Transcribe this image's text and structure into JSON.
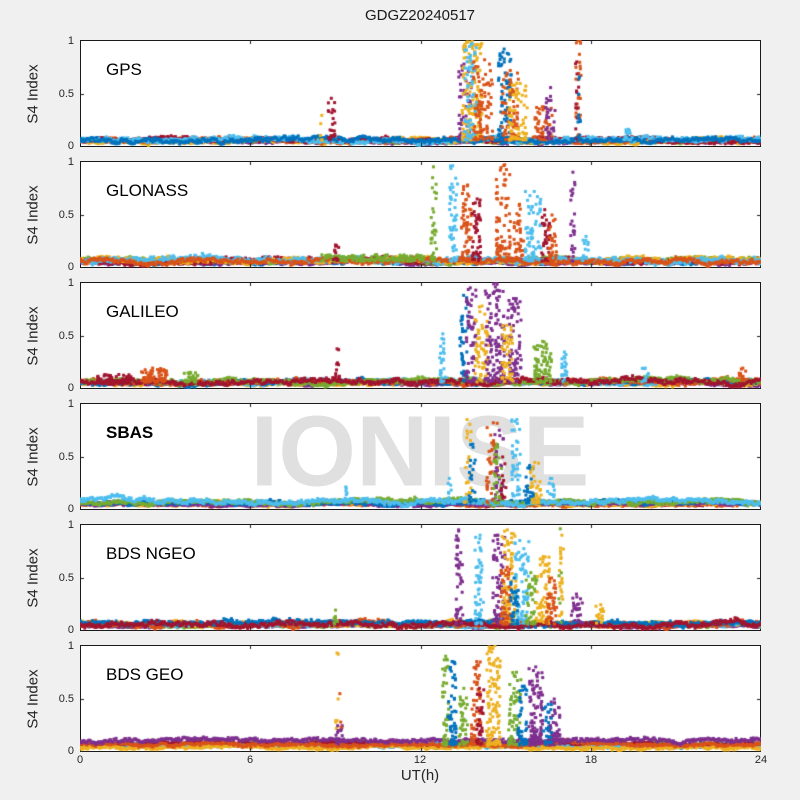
{
  "watermark": {
    "text": "IONISE"
  },
  "colors": {
    "figure_bg": "#f0f0f0",
    "panel_bg": "#ffffff",
    "axis_color": "#1a1a1a",
    "text_color": "#262626",
    "watermark_color": "#e0e0e0"
  },
  "chart_data": {
    "type": "scatter",
    "title": "GDGZ20240517",
    "xlabel": "UT(h)",
    "ylabel": "S4 Index",
    "xlim": [
      0,
      24
    ],
    "ylim": [
      0,
      1
    ],
    "xticks": [
      0,
      6,
      12,
      18,
      24
    ],
    "yticks": [
      0,
      0.5,
      1
    ],
    "xticklabels": [
      "0",
      "6",
      "12",
      "18",
      "24"
    ],
    "yticklabels": [
      "0",
      "0.5",
      "1"
    ],
    "grid": false,
    "legend": "none",
    "marker": "square",
    "marker_size_px": 3,
    "palette": {
      "blue": "#0072BD",
      "orange": "#D95319",
      "yellow": "#EDB120",
      "purple": "#7E2F8E",
      "green": "#77AC30",
      "cyan": "#4DBEEE",
      "red": "#A2142F"
    },
    "panels": [
      {
        "label": "GPS",
        "bold_label": false,
        "baseline": [
          {
            "color": "purple",
            "mean": 0.055,
            "amp": 0.02
          },
          {
            "color": "green",
            "mean": 0.06,
            "amp": 0.02
          },
          {
            "color": "yellow",
            "mean": 0.065,
            "amp": 0.03
          },
          {
            "color": "orange",
            "mean": 0.07,
            "amp": 0.03
          },
          {
            "color": "red",
            "mean": 0.07,
            "amp": 0.03
          },
          {
            "color": "cyan",
            "mean": 0.075,
            "amp": 0.035
          },
          {
            "color": "blue",
            "mean": 0.07,
            "amp": 0.035
          }
        ],
        "spikes": [
          {
            "t": 8.5,
            "w": 0.1,
            "peak": 0.3,
            "color": "yellow",
            "n": 4
          },
          {
            "t": 8.85,
            "w": 0.25,
            "peak": 0.46,
            "color": "red",
            "n": 22
          },
          {
            "t": 13.55,
            "w": 0.45,
            "peak": 0.78,
            "color": "purple",
            "n": 45
          },
          {
            "t": 13.8,
            "w": 0.7,
            "peak": 1.0,
            "color": "yellow",
            "n": 150
          },
          {
            "t": 13.75,
            "w": 0.45,
            "peak": 0.97,
            "color": "cyan",
            "n": 65
          },
          {
            "t": 14.2,
            "w": 0.7,
            "peak": 0.82,
            "color": "orange",
            "n": 90
          },
          {
            "t": 14.95,
            "w": 0.45,
            "peak": 0.92,
            "color": "blue",
            "n": 70
          },
          {
            "t": 15.15,
            "w": 0.6,
            "peak": 0.72,
            "color": "orange",
            "n": 70
          },
          {
            "t": 15.4,
            "w": 0.7,
            "peak": 0.6,
            "color": "yellow",
            "n": 70
          },
          {
            "t": 16.3,
            "w": 0.7,
            "peak": 0.38,
            "color": "orange",
            "n": 45
          },
          {
            "t": 16.55,
            "w": 0.35,
            "peak": 0.56,
            "color": "purple",
            "n": 28
          },
          {
            "t": 17.55,
            "w": 0.18,
            "peak": 1.0,
            "color": "orange",
            "n": 28
          },
          {
            "t": 17.5,
            "w": 0.12,
            "peak": 0.8,
            "color": "red",
            "n": 12
          },
          {
            "t": 17.58,
            "w": 0.1,
            "peak": 0.66,
            "color": "blue",
            "n": 12
          },
          {
            "t": 19.3,
            "w": 0.3,
            "peak": 0.17,
            "color": "cyan",
            "n": 14
          }
        ]
      },
      {
        "label": "GLONASS",
        "bold_label": false,
        "baseline": [
          {
            "color": "blue",
            "mean": 0.06,
            "amp": 0.025
          },
          {
            "color": "purple",
            "mean": 0.06,
            "amp": 0.025
          },
          {
            "color": "green",
            "mean": 0.08,
            "amp": 0.03
          },
          {
            "color": "red",
            "mean": 0.07,
            "amp": 0.035
          },
          {
            "color": "yellow",
            "mean": 0.075,
            "amp": 0.035
          },
          {
            "color": "cyan",
            "mean": 0.08,
            "amp": 0.04
          },
          {
            "color": "orange",
            "mean": 0.07,
            "amp": 0.035
          }
        ],
        "spikes": [
          {
            "t": 10.3,
            "w": 3.6,
            "peak": 0.13,
            "color": "green",
            "n": 160
          },
          {
            "t": 9.0,
            "w": 0.2,
            "peak": 0.22,
            "color": "red",
            "n": 12
          },
          {
            "t": 12.45,
            "w": 0.2,
            "peak": 0.95,
            "color": "green",
            "n": 32
          },
          {
            "t": 13.15,
            "w": 0.3,
            "peak": 0.96,
            "color": "cyan",
            "n": 48
          },
          {
            "t": 13.6,
            "w": 0.35,
            "peak": 0.78,
            "color": "orange",
            "n": 55
          },
          {
            "t": 13.95,
            "w": 0.3,
            "peak": 0.65,
            "color": "red",
            "n": 45
          },
          {
            "t": 14.9,
            "w": 0.5,
            "peak": 0.97,
            "color": "orange",
            "n": 75
          },
          {
            "t": 15.45,
            "w": 0.35,
            "peak": 0.6,
            "color": "orange",
            "n": 35
          },
          {
            "t": 15.95,
            "w": 0.55,
            "peak": 0.72,
            "color": "cyan",
            "n": 65
          },
          {
            "t": 16.4,
            "w": 0.3,
            "peak": 0.55,
            "color": "red",
            "n": 35
          },
          {
            "t": 16.65,
            "w": 0.3,
            "peak": 0.5,
            "color": "orange",
            "n": 30
          },
          {
            "t": 17.35,
            "w": 0.15,
            "peak": 0.9,
            "color": "purple",
            "n": 25
          },
          {
            "t": 17.8,
            "w": 0.25,
            "peak": 0.3,
            "color": "cyan",
            "n": 15
          }
        ]
      },
      {
        "label": "GALILEO",
        "bold_label": false,
        "baseline": [
          {
            "color": "purple",
            "mean": 0.055,
            "amp": 0.02
          },
          {
            "color": "yellow",
            "mean": 0.06,
            "amp": 0.03
          },
          {
            "color": "cyan",
            "mean": 0.07,
            "amp": 0.03
          },
          {
            "color": "blue",
            "mean": 0.07,
            "amp": 0.03
          },
          {
            "color": "orange",
            "mean": 0.07,
            "amp": 0.035
          },
          {
            "color": "green",
            "mean": 0.08,
            "amp": 0.035
          },
          {
            "color": "red",
            "mean": 0.075,
            "amp": 0.04
          }
        ],
        "spikes": [
          {
            "t": 2.6,
            "w": 0.9,
            "peak": 0.2,
            "color": "orange",
            "n": 70
          },
          {
            "t": 1.2,
            "w": 1.2,
            "peak": 0.14,
            "color": "red",
            "n": 60
          },
          {
            "t": 3.9,
            "w": 0.5,
            "peak": 0.16,
            "color": "green",
            "n": 30
          },
          {
            "t": 9.05,
            "w": 0.15,
            "peak": 0.38,
            "color": "red",
            "n": 12
          },
          {
            "t": 12.75,
            "w": 0.2,
            "peak": 0.52,
            "color": "cyan",
            "n": 26
          },
          {
            "t": 13.5,
            "w": 0.3,
            "peak": 0.88,
            "color": "blue",
            "n": 42
          },
          {
            "t": 13.75,
            "w": 0.4,
            "peak": 0.95,
            "color": "purple",
            "n": 60
          },
          {
            "t": 14.15,
            "w": 0.5,
            "peak": 0.78,
            "color": "yellow",
            "n": 65
          },
          {
            "t": 14.6,
            "w": 0.7,
            "peak": 1.0,
            "color": "purple",
            "n": 120
          },
          {
            "t": 15.3,
            "w": 0.5,
            "peak": 0.85,
            "color": "purple",
            "n": 70
          },
          {
            "t": 15.05,
            "w": 0.4,
            "peak": 0.6,
            "color": "yellow",
            "n": 45
          },
          {
            "t": 16.3,
            "w": 0.65,
            "peak": 0.45,
            "color": "green",
            "n": 75
          },
          {
            "t": 17.05,
            "w": 0.2,
            "peak": 0.35,
            "color": "cyan",
            "n": 20
          },
          {
            "t": 19.9,
            "w": 0.25,
            "peak": 0.2,
            "color": "cyan",
            "n": 10
          },
          {
            "t": 23.3,
            "w": 0.3,
            "peak": 0.2,
            "color": "orange",
            "n": 12
          }
        ]
      },
      {
        "label": "SBAS",
        "bold_label": true,
        "baseline": [
          {
            "color": "red",
            "mean": 0.06,
            "amp": 0.02
          },
          {
            "color": "orange",
            "mean": 0.06,
            "amp": 0.02
          },
          {
            "color": "yellow",
            "mean": 0.065,
            "amp": 0.025
          },
          {
            "color": "purple",
            "mean": 0.06,
            "amp": 0.02
          },
          {
            "color": "blue",
            "mean": 0.075,
            "amp": 0.03
          },
          {
            "color": "green",
            "mean": 0.08,
            "amp": 0.03
          },
          {
            "color": "cyan",
            "mean": 0.085,
            "amp": 0.035
          }
        ],
        "spikes": [
          {
            "t": 9.35,
            "w": 0.15,
            "peak": 0.22,
            "color": "cyan",
            "n": 8
          },
          {
            "t": 13.0,
            "w": 0.15,
            "peak": 0.3,
            "color": "cyan",
            "n": 8
          },
          {
            "t": 13.65,
            "w": 0.25,
            "peak": 0.85,
            "color": "yellow",
            "n": 25
          },
          {
            "t": 13.8,
            "w": 0.3,
            "peak": 0.62,
            "color": "blue",
            "n": 20
          },
          {
            "t": 14.5,
            "w": 0.4,
            "peak": 0.82,
            "color": "orange",
            "n": 40
          },
          {
            "t": 14.75,
            "w": 0.3,
            "peak": 0.75,
            "color": "purple",
            "n": 30
          },
          {
            "t": 14.7,
            "w": 0.3,
            "peak": 0.62,
            "color": "green",
            "n": 28
          },
          {
            "t": 14.9,
            "w": 0.2,
            "peak": 0.5,
            "color": "red",
            "n": 12
          },
          {
            "t": 15.35,
            "w": 0.3,
            "peak": 0.85,
            "color": "cyan",
            "n": 45
          },
          {
            "t": 15.8,
            "w": 0.35,
            "peak": 0.42,
            "color": "blue",
            "n": 25
          },
          {
            "t": 16.05,
            "w": 0.4,
            "peak": 0.45,
            "color": "yellow",
            "n": 32
          },
          {
            "t": 16.6,
            "w": 0.3,
            "peak": 0.3,
            "color": "cyan",
            "n": 15
          }
        ]
      },
      {
        "label": "BDS NGEO",
        "bold_label": false,
        "baseline": [
          {
            "color": "purple",
            "mean": 0.055,
            "amp": 0.02
          },
          {
            "color": "green",
            "mean": 0.06,
            "amp": 0.025
          },
          {
            "color": "yellow",
            "mean": 0.07,
            "amp": 0.03
          },
          {
            "color": "cyan",
            "mean": 0.07,
            "amp": 0.03
          },
          {
            "color": "orange",
            "mean": 0.07,
            "amp": 0.035
          },
          {
            "color": "blue",
            "mean": 0.075,
            "amp": 0.035
          },
          {
            "color": "red",
            "mean": 0.07,
            "amp": 0.04
          }
        ],
        "spikes": [
          {
            "t": 9.0,
            "w": 0.15,
            "peak": 0.2,
            "color": "green",
            "n": 8
          },
          {
            "t": 13.35,
            "w": 0.25,
            "peak": 0.95,
            "color": "purple",
            "n": 45
          },
          {
            "t": 14.05,
            "w": 0.3,
            "peak": 0.9,
            "color": "cyan",
            "n": 50
          },
          {
            "t": 14.75,
            "w": 0.45,
            "peak": 0.9,
            "color": "purple",
            "n": 75
          },
          {
            "t": 15.1,
            "w": 0.5,
            "peak": 0.95,
            "color": "yellow",
            "n": 95
          },
          {
            "t": 15.0,
            "w": 0.4,
            "peak": 0.6,
            "color": "orange",
            "n": 50
          },
          {
            "t": 15.55,
            "w": 0.5,
            "peak": 0.85,
            "color": "cyan",
            "n": 80
          },
          {
            "t": 15.3,
            "w": 0.3,
            "peak": 0.5,
            "color": "blue",
            "n": 30
          },
          {
            "t": 15.9,
            "w": 0.4,
            "peak": 0.55,
            "color": "green",
            "n": 42
          },
          {
            "t": 16.3,
            "w": 0.5,
            "peak": 0.7,
            "color": "yellow",
            "n": 60
          },
          {
            "t": 16.6,
            "w": 0.4,
            "peak": 0.5,
            "color": "orange",
            "n": 38
          },
          {
            "t": 16.95,
            "w": 0.15,
            "peak": 0.9,
            "color": "yellow",
            "n": 20
          },
          {
            "t": 16.9,
            "w": 0.1,
            "peak": 0.96,
            "color": "green",
            "n": 5
          },
          {
            "t": 17.5,
            "w": 0.4,
            "peak": 0.35,
            "color": "purple",
            "n": 25
          },
          {
            "t": 18.3,
            "w": 0.3,
            "peak": 0.25,
            "color": "yellow",
            "n": 15
          }
        ]
      },
      {
        "label": "BDS GEO",
        "bold_label": false,
        "baseline": [
          {
            "color": "green",
            "mean": 0.08,
            "amp": 0.025
          },
          {
            "color": "blue",
            "mean": 0.07,
            "amp": 0.025
          },
          {
            "color": "cyan",
            "mean": 0.065,
            "amp": 0.02
          },
          {
            "color": "red",
            "mean": 0.08,
            "amp": 0.025
          },
          {
            "color": "yellow",
            "mean": 0.045,
            "amp": 0.025
          },
          {
            "color": "orange",
            "mean": 0.075,
            "amp": 0.025
          },
          {
            "color": "purple",
            "mean": 0.11,
            "amp": 0.028
          }
        ],
        "spikes": [
          {
            "t": 9.05,
            "w": 0.12,
            "peak": 0.93,
            "color": "yellow",
            "n": 6
          },
          {
            "t": 9.1,
            "w": 0.25,
            "peak": 0.25,
            "color": "purple",
            "n": 22
          },
          {
            "t": 9.15,
            "w": 0.1,
            "peak": 0.55,
            "color": "orange",
            "n": 3
          },
          {
            "t": 12.85,
            "w": 0.25,
            "peak": 0.9,
            "color": "green",
            "n": 45
          },
          {
            "t": 13.1,
            "w": 0.3,
            "peak": 0.85,
            "color": "blue",
            "n": 50
          },
          {
            "t": 13.5,
            "w": 0.3,
            "peak": 0.6,
            "color": "green",
            "n": 35
          },
          {
            "t": 13.95,
            "w": 0.35,
            "peak": 0.85,
            "color": "orange",
            "n": 60
          },
          {
            "t": 14.1,
            "w": 0.3,
            "peak": 0.6,
            "color": "red",
            "n": 30
          },
          {
            "t": 14.55,
            "w": 0.5,
            "peak": 1.0,
            "color": "yellow",
            "n": 115
          },
          {
            "t": 15.3,
            "w": 0.45,
            "peak": 0.75,
            "color": "green",
            "n": 60
          },
          {
            "t": 15.6,
            "w": 0.35,
            "peak": 0.62,
            "color": "blue",
            "n": 45
          },
          {
            "t": 16.05,
            "w": 0.5,
            "peak": 0.8,
            "color": "purple",
            "n": 95
          },
          {
            "t": 16.7,
            "w": 0.4,
            "peak": 0.5,
            "color": "purple",
            "n": 50
          },
          {
            "t": 16.45,
            "w": 0.3,
            "peak": 0.45,
            "color": "blue",
            "n": 25
          }
        ]
      }
    ]
  }
}
